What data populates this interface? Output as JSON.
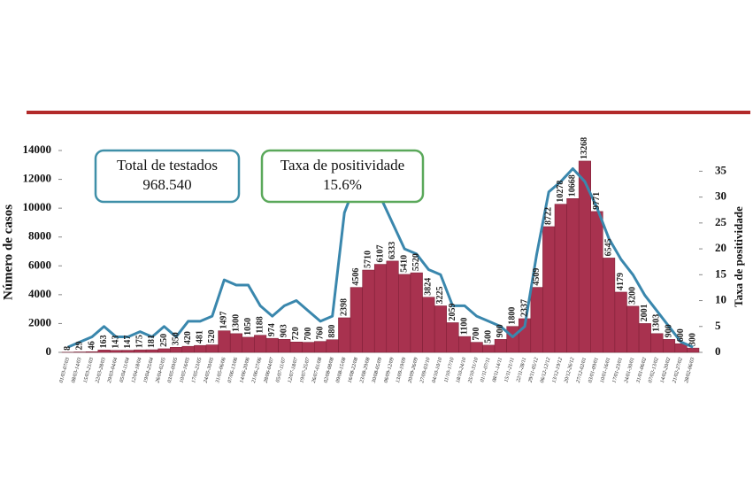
{
  "chart_data": {
    "type": "bar",
    "y_label": "Número de casos",
    "y2_label": "Taxa de positividade",
    "categories": [
      "01/03-07/03",
      "08/03-14/03",
      "15/03-21/03",
      "22/03-28/03",
      "29/03-04/04",
      "05/04-11/04",
      "12/04-18/04",
      "19/04-25/04",
      "26/04-02/05",
      "03/05-09/05",
      "10/05-16/05",
      "17/05-23/05",
      "24/05-30/05",
      "31/05-06/06",
      "07/06-13/06",
      "14/06-20/06",
      "21/06-27/06",
      "28/06-04/07",
      "05/07-11/07",
      "12/07-18/07",
      "19/07-25/07",
      "26/07-01/08",
      "02/08-08/08",
      "09/08-15/08",
      "16/08-22/08",
      "23/08-29/08",
      "30/08-05/09",
      "06/09-12/09",
      "13/09-19/09",
      "20/09-26/09",
      "27/09-03/10",
      "04/10-10/10",
      "11/10-17/10",
      "18/10-24/10",
      "25/10-31/10",
      "01/11-07/11",
      "08/11-14/11",
      "15/11-21/11",
      "22/11-28/11",
      "29/11-05/12",
      "06/12-12/12",
      "13/12-19/12",
      "20/12-26/12",
      "27/12-02/01",
      "03/01-09/01",
      "10/01-16/01",
      "17/01-23/01",
      "24/01-30/01",
      "31/01-06/02",
      "07/02-13/02",
      "14/02-20/02",
      "21/02-27/02",
      "28/02-06/03"
    ],
    "series": [
      {
        "type": "bar",
        "color": "#a8324f",
        "values": [
          8,
          29,
          46,
          163,
          143,
          147,
          175,
          181,
          250,
          350,
          420,
          481,
          520,
          1497,
          1300,
          1050,
          1188,
          974,
          903,
          720,
          700,
          760,
          880,
          2398,
          4506,
          5710,
          6107,
          6333,
          5410,
          5520,
          3824,
          3225,
          2059,
          1100,
          700,
          500,
          900,
          1800,
          2337,
          4509,
          8722,
          10278,
          10668,
          13268,
          9771,
          6545,
          4179,
          3200,
          2001,
          1303,
          900,
          600,
          300
        ]
      },
      {
        "type": "line",
        "axis": "y2",
        "color": "#3a87ad",
        "values": [
          1,
          2,
          3,
          5,
          3,
          3,
          4,
          3,
          5,
          3,
          6,
          6,
          7,
          14,
          13,
          13,
          9,
          7,
          9,
          10,
          8,
          6,
          7,
          27,
          33,
          36,
          30,
          25,
          20,
          19,
          16,
          15,
          9,
          9,
          7,
          6,
          5,
          3,
          5,
          19,
          31,
          33,
          35.5,
          33,
          28,
          22,
          18,
          15,
          11,
          8,
          5,
          2,
          1
        ]
      }
    ],
    "ylim": [
      0,
      14000
    ],
    "yticks": [
      0,
      2000,
      4000,
      6000,
      8000,
      10000,
      12000,
      14000
    ],
    "y2lim": [
      0,
      39
    ],
    "y2ticks": [
      0,
      5,
      10,
      15,
      20,
      25,
      30,
      35
    ],
    "annotations": [
      {
        "title": "Total de testados",
        "value": "968.540",
        "color": "#3f8fa8"
      },
      {
        "title": "Taxa de positividade",
        "value": "15.6%",
        "color": "#5aa85a"
      }
    ]
  }
}
